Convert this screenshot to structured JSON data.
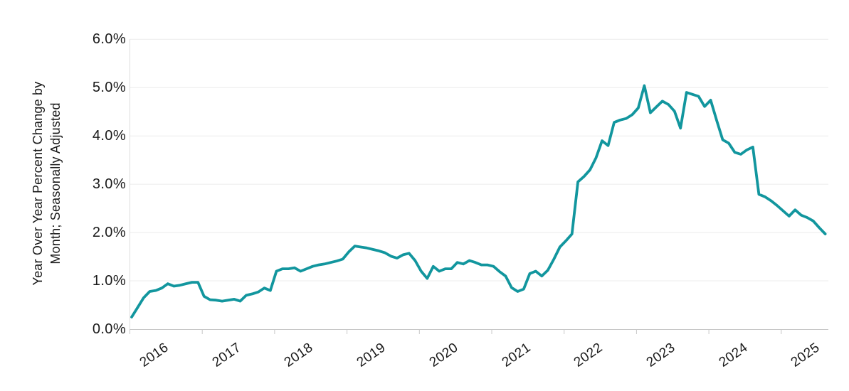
{
  "chart_data": {
    "type": "line",
    "title": "",
    "ylabel": "Year Over Year Percent Change by Month; Seasonally Adjusted",
    "ylabel_lines": [
      "Year Over Year Percent Change by",
      "Month; Seasonally Adjusted"
    ],
    "xlabel": "",
    "yticks": [
      "0.0%",
      "1.0%",
      "2.0%",
      "3.0%",
      "4.0%",
      "5.0%",
      "6.0%"
    ],
    "xticks": [
      "2016",
      "2017",
      "2018",
      "2019",
      "2020",
      "2021",
      "2022",
      "2023",
      "2024",
      "2025"
    ],
    "ylim": [
      0,
      6
    ],
    "grid": "horizontal",
    "legend": "none",
    "frequency": "monthly",
    "x_start": "2016-01",
    "x_end": "2025-08",
    "series": [
      {
        "name": "Year over year percent change",
        "color": "#12969e",
        "values": [
          0.25,
          0.45,
          0.65,
          0.78,
          0.8,
          0.85,
          0.94,
          0.89,
          0.91,
          0.94,
          0.97,
          0.97,
          0.68,
          0.61,
          0.6,
          0.58,
          0.6,
          0.62,
          0.58,
          0.7,
          0.73,
          0.77,
          0.85,
          0.8,
          1.2,
          1.25,
          1.25,
          1.27,
          1.2,
          1.25,
          1.3,
          1.33,
          1.35,
          1.38,
          1.41,
          1.45,
          1.6,
          1.72,
          1.7,
          1.68,
          1.65,
          1.62,
          1.58,
          1.51,
          1.47,
          1.54,
          1.57,
          1.42,
          1.2,
          1.05,
          1.3,
          1.2,
          1.25,
          1.25,
          1.38,
          1.35,
          1.42,
          1.38,
          1.33,
          1.33,
          1.3,
          1.19,
          1.1,
          0.86,
          0.78,
          0.83,
          1.15,
          1.2,
          1.1,
          1.22,
          1.45,
          1.7,
          1.83,
          1.97,
          3.05,
          3.16,
          3.3,
          3.55,
          3.9,
          3.8,
          4.28,
          4.33,
          4.36,
          4.44,
          4.58,
          5.04,
          4.48,
          4.6,
          4.72,
          4.65,
          4.51,
          4.16,
          4.9,
          4.86,
          4.82,
          4.61,
          4.74,
          4.32,
          3.92,
          3.85,
          3.66,
          3.62,
          3.71,
          3.77,
          2.79,
          2.74,
          2.66,
          2.56,
          2.45,
          2.34,
          2.47,
          2.36,
          2.31,
          2.24,
          2.1,
          1.97
        ]
      }
    ]
  },
  "colors": {
    "line": "#12969e",
    "gridline": "#ececec",
    "y_axis_line": "#dcdcdc",
    "x_axis_line": "#c8c8c8",
    "tick": "#c8c8c8",
    "text": "#1a1a1a",
    "background": "#ffffff"
  }
}
